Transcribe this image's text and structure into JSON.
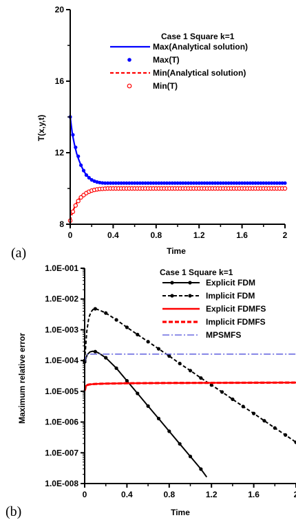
{
  "chart_data": [
    {
      "panel_label": "(a)",
      "type": "line",
      "title": "Case 1 Square k=1",
      "xlabel": "Time",
      "ylabel": "T(x,y,t)",
      "xlim": [
        0,
        2
      ],
      "ylim": [
        8,
        20
      ],
      "x_ticks": [
        "0",
        "0.4",
        "0.8",
        "1.2",
        "1.6",
        "2"
      ],
      "y_ticks": [
        "8",
        "12",
        "16",
        "20"
      ],
      "legend_position": "top-right",
      "series": [
        {
          "name": "Max(Analytical solution)",
          "style": "solid-line",
          "color": "#0000ff",
          "x": [
            0,
            0.02,
            0.04,
            0.06,
            0.08,
            0.1,
            0.12,
            0.14,
            0.16,
            0.18,
            0.2,
            0.22,
            0.25,
            0.28,
            0.32,
            0.36,
            0.4,
            0.5,
            0.6,
            0.8,
            1.0,
            1.2,
            1.4,
            1.6,
            1.8,
            2.0
          ],
          "y": [
            14.0,
            13.05,
            12.45,
            11.95,
            11.6,
            11.3,
            11.05,
            10.85,
            10.7,
            10.58,
            10.48,
            10.42,
            10.36,
            10.33,
            10.31,
            10.3,
            10.3,
            10.3,
            10.3,
            10.3,
            10.3,
            10.3,
            10.3,
            10.3,
            10.3,
            10.3
          ]
        },
        {
          "name": "Max(T)",
          "style": "filled-circle",
          "color": "#0000ff",
          "x": [
            0,
            0.025,
            0.05,
            0.075,
            0.1,
            0.125,
            0.15,
            0.175,
            0.2,
            0.225,
            0.25,
            0.275,
            0.3,
            0.325,
            0.35,
            0.375,
            0.4,
            0.425,
            0.45,
            0.475,
            0.5,
            0.525,
            0.55,
            0.575,
            0.6,
            0.625,
            0.65,
            0.675,
            0.7,
            0.725,
            0.75,
            0.775,
            0.8,
            0.825,
            0.85,
            0.875,
            0.9,
            0.925,
            0.95,
            0.975,
            1.0,
            1.025,
            1.05,
            1.075,
            1.1,
            1.125,
            1.15,
            1.175,
            1.2,
            1.225,
            1.25,
            1.275,
            1.3,
            1.325,
            1.35,
            1.375,
            1.4,
            1.425,
            1.45,
            1.475,
            1.5,
            1.525,
            1.55,
            1.575,
            1.6,
            1.625,
            1.65,
            1.675,
            1.7,
            1.725,
            1.75,
            1.775,
            1.8,
            1.825,
            1.85,
            1.875,
            1.9,
            1.925,
            1.95,
            1.975,
            2.0
          ],
          "y": [
            14.0,
            13.0,
            12.3,
            11.8,
            11.3,
            11.0,
            10.75,
            10.6,
            10.48,
            10.41,
            10.36,
            10.33,
            10.31,
            10.3,
            10.3,
            10.3,
            10.3,
            10.3,
            10.3,
            10.3,
            10.3,
            10.3,
            10.3,
            10.3,
            10.3,
            10.3,
            10.3,
            10.3,
            10.3,
            10.3,
            10.3,
            10.3,
            10.3,
            10.3,
            10.3,
            10.3,
            10.3,
            10.3,
            10.3,
            10.3,
            10.3,
            10.3,
            10.3,
            10.3,
            10.3,
            10.3,
            10.3,
            10.3,
            10.3,
            10.3,
            10.3,
            10.3,
            10.3,
            10.3,
            10.3,
            10.3,
            10.3,
            10.3,
            10.3,
            10.3,
            10.3,
            10.3,
            10.3,
            10.3,
            10.3,
            10.3,
            10.3,
            10.3,
            10.3,
            10.3,
            10.3,
            10.3,
            10.3,
            10.3,
            10.3,
            10.3,
            10.3,
            10.3,
            10.3,
            10.3,
            10.3
          ]
        },
        {
          "name": "Min(Analytical solution)",
          "style": "dashed-line",
          "color": "#ff0000",
          "x": [
            0,
            0.02,
            0.04,
            0.06,
            0.08,
            0.1,
            0.12,
            0.14,
            0.16,
            0.18,
            0.2,
            0.22,
            0.25,
            0.28,
            0.32,
            0.36,
            0.4,
            0.5,
            0.6,
            0.8,
            1.0,
            1.2,
            1.4,
            1.6,
            1.8,
            2.0
          ],
          "y": [
            8.2,
            8.65,
            8.95,
            9.2,
            9.4,
            9.55,
            9.67,
            9.76,
            9.83,
            9.88,
            9.92,
            9.95,
            9.97,
            9.98,
            9.99,
            10.0,
            10.0,
            10.0,
            10.0,
            10.0,
            10.0,
            10.0,
            10.0,
            10.0,
            10.0,
            10.0
          ]
        },
        {
          "name": "Min(T)",
          "style": "open-circle",
          "color": "#ff0000",
          "x": [
            0,
            0.025,
            0.05,
            0.075,
            0.1,
            0.125,
            0.15,
            0.175,
            0.2,
            0.225,
            0.25,
            0.275,
            0.3,
            0.325,
            0.35,
            0.375,
            0.4,
            0.425,
            0.45,
            0.475,
            0.5,
            0.525,
            0.55,
            0.575,
            0.6,
            0.625,
            0.65,
            0.675,
            0.7,
            0.725,
            0.75,
            0.775,
            0.8,
            0.825,
            0.85,
            0.875,
            0.9,
            0.925,
            0.95,
            0.975,
            1.0,
            1.025,
            1.05,
            1.075,
            1.1,
            1.125,
            1.15,
            1.175,
            1.2,
            1.225,
            1.25,
            1.275,
            1.3,
            1.325,
            1.35,
            1.375,
            1.4,
            1.425,
            1.45,
            1.475,
            1.5,
            1.525,
            1.55,
            1.575,
            1.6,
            1.625,
            1.65,
            1.675,
            1.7,
            1.725,
            1.75,
            1.775,
            1.8,
            1.825,
            1.85,
            1.875,
            1.9,
            1.925,
            1.95,
            1.975,
            2.0
          ],
          "y": [
            8.2,
            8.7,
            9.05,
            9.3,
            9.5,
            9.63,
            9.74,
            9.82,
            9.88,
            9.92,
            9.95,
            9.97,
            9.98,
            9.99,
            10.0,
            10.0,
            10.0,
            10.0,
            10.0,
            10.0,
            10.0,
            10.0,
            10.0,
            10.0,
            10.0,
            10.0,
            10.0,
            10.0,
            10.0,
            10.0,
            10.0,
            10.0,
            10.0,
            10.0,
            10.0,
            10.0,
            10.0,
            10.0,
            10.0,
            10.0,
            10.0,
            10.0,
            10.0,
            10.0,
            10.0,
            10.0,
            10.0,
            10.0,
            10.0,
            10.0,
            10.0,
            10.0,
            10.0,
            10.0,
            10.0,
            10.0,
            10.0,
            10.0,
            10.0,
            10.0,
            10.0,
            10.0,
            10.0,
            10.0,
            10.0,
            10.0,
            10.0,
            10.0,
            10.0,
            10.0,
            10.0,
            10.0,
            10.0,
            10.0,
            10.0,
            10.0,
            10.0,
            10.0,
            10.0,
            10.0,
            10.0
          ]
        }
      ]
    },
    {
      "panel_label": "(b)",
      "type": "line",
      "title": "Case 1 Square k=1",
      "xlabel": "Time",
      "ylabel": "Maximum relative error",
      "xlim": [
        0,
        2
      ],
      "ylim": [
        1e-08,
        0.1
      ],
      "y_scale": "log",
      "x_ticks": [
        "0",
        "0.4",
        "0.8",
        "1.2",
        "1.6",
        "2"
      ],
      "y_ticks": [
        "1.0E-008",
        "1.0E-007",
        "1.0E-006",
        "1.0E-005",
        "1.0E-004",
        "1.0E-003",
        "1.0E-002",
        "1.0E-001"
      ],
      "legend_position": "top-right",
      "series": [
        {
          "name": "Explicit FDM",
          "style": "solid-line-dots",
          "color": "#000000",
          "x": [
            0,
            0.025,
            0.05,
            0.075,
            0.1,
            0.125,
            0.15,
            0.2,
            0.3,
            0.4,
            0.5,
            0.6,
            0.7,
            0.8,
            0.9,
            1.0,
            1.1,
            1.155
          ],
          "y": [
            9e-05,
            0.000155,
            0.00019,
            0.0002,
            0.000195,
            0.00018,
            0.00016,
            0.000123,
            5.62e-05,
            2.19e-05,
            8.5e-06,
            3.3e-06,
            1.3e-06,
            5e-07,
            1.95e-07,
            7.6e-08,
            2.95e-08,
            1.62e-08
          ]
        },
        {
          "name": "Implicit FDM",
          "style": "dashed-line-dots",
          "color": "#000000",
          "x": [
            0,
            0.02,
            0.04,
            0.06,
            0.08,
            0.1,
            0.12,
            0.15,
            0.2,
            0.3,
            0.4,
            0.5,
            0.6,
            0.7,
            0.8,
            0.9,
            1.0,
            1.1,
            1.2,
            1.3,
            1.4,
            1.5,
            1.6,
            1.7,
            1.8,
            1.9,
            2.0
          ],
          "y": [
            0.0001,
            0.0009,
            0.0025,
            0.0038,
            0.0046,
            0.0048,
            0.0046,
            0.0042,
            0.0035,
            0.0021,
            0.0012,
            0.0007,
            0.00041,
            0.00024,
            0.00014,
            8e-05,
            4.7e-05,
            2.7e-05,
            1.6e-05,
            9.5e-06,
            5.5e-06,
            3.2e-06,
            1.9e-06,
            1.1e-06,
            6.4e-07,
            3.8e-07,
            2.2e-07
          ]
        },
        {
          "name": "Explicit FDMFS",
          "style": "solid-line",
          "color": "#ff0000",
          "x": [
            0,
            0.005,
            0.01,
            0.02,
            0.04,
            0.06,
            0.1,
            0.2,
            0.4,
            0.8,
            1.2,
            1.6,
            2.0
          ],
          "y": [
            1.05e-05,
            1.2e-05,
            1.45e-05,
            1.58e-05,
            1.65e-05,
            1.69e-05,
            1.73e-05,
            1.78e-05,
            1.82e-05,
            1.86e-05,
            1.88e-05,
            1.9e-05,
            1.92e-05
          ]
        },
        {
          "name": "Implicit FDMFS",
          "style": "dashed-line",
          "color": "#ff0000",
          "x": [
            0,
            0.005,
            0.01,
            0.02,
            0.04,
            0.06,
            0.1,
            0.2,
            0.4,
            0.8,
            1.2,
            1.6,
            2.0
          ],
          "y": [
            1.05e-05,
            1.2e-05,
            1.45e-05,
            1.58e-05,
            1.65e-05,
            1.69e-05,
            1.73e-05,
            1.78e-05,
            1.82e-05,
            1.86e-05,
            1.88e-05,
            1.9e-05,
            1.92e-05
          ]
        },
        {
          "name": "MPSMFS",
          "style": "dash-dot-line",
          "color": "#6a6ae0",
          "x": [
            0,
            0.01,
            0.02,
            0.03,
            0.05,
            0.08,
            0.1,
            0.2,
            0.4,
            0.8,
            1.2,
            1.6,
            2.0
          ],
          "y": [
            8e-05,
            0.000125,
            0.000148,
            0.000158,
            0.000162,
            0.000162,
            0.000162,
            0.000162,
            0.000162,
            0.000162,
            0.000162,
            0.000162,
            0.000162
          ]
        }
      ]
    }
  ]
}
